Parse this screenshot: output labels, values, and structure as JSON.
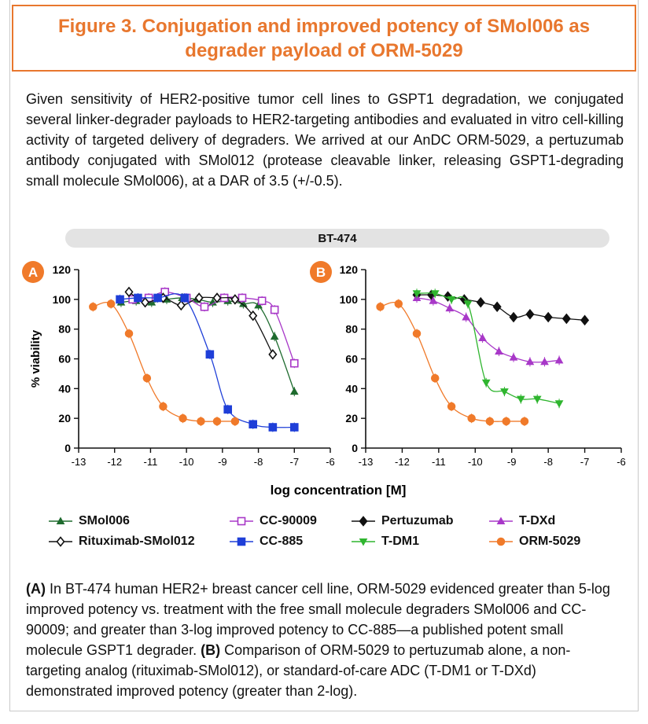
{
  "figure": {
    "title": "Figure 3. Conjugation and improved potency of SMol006 as degrader payload of ORM-5029",
    "intro": "Given sensitivity of HER2-positive tumor cell lines to GSPT1 degradation, we conjugated several linker-degrader payloads to HER2-targeting antibodies and evaluated in vitro cell-killing activity of targeted delivery of degraders. We arrived at our AnDC ORM-5029, a pertuzumab antibody conjugated with SMol012 (protease cleavable linker, releasing GSPT1-degrading small molecule SMol006), at a DAR of 3.5 (+/-0.5).",
    "cell_line": "BT-474",
    "caption": {
      "a_label": "(A)",
      "a_text": " In BT-474 human HER2+ breast cancer cell line, ORM-5029 evidenced greater than 5-log improved potency vs. treatment with the free small molecule degraders SMol006 and CC-90009; and greater than 3-log improved potency to CC-885—a published potent small molecule GSPT1 degrader. ",
      "b_label": "(B)",
      "b_text": " Comparison of ORM-5029 to pertuzumab alone, a non-targeting analog (rituximab-SMol012), or standard-of-care ADC (T-DM1 or T-DXd) demonstrated improved potency (greater than 2-log)."
    }
  },
  "legend": [
    {
      "name": "SMol006",
      "color": "#1e6b2e",
      "marker": "triangle"
    },
    {
      "name": "CC-90009",
      "color": "#a838c8",
      "marker": "square-open"
    },
    {
      "name": "Pertuzumab",
      "color": "#111111",
      "marker": "diamond"
    },
    {
      "name": "T-DXd",
      "color": "#a838c8",
      "marker": "triangle"
    },
    {
      "name": "Rituximab-SMol012",
      "color": "#111111",
      "marker": "diamond-open"
    },
    {
      "name": "CC-885",
      "color": "#1f3fd8",
      "marker": "square"
    },
    {
      "name": "T-DM1",
      "color": "#2fb52f",
      "marker": "triangle-down"
    },
    {
      "name": "ORM-5029",
      "color": "#f07a2a",
      "marker": "circle"
    }
  ],
  "chart_data": [
    {
      "type": "scatter",
      "panel": "A",
      "xlabel": "log concentration [M]",
      "ylabel": "% viability",
      "xlim": [
        -13,
        -6
      ],
      "ylim": [
        0,
        120
      ],
      "xticks": [
        -13,
        -12,
        -11,
        -10,
        -9,
        -8,
        -7,
        -6
      ],
      "yticks": [
        0,
        20,
        40,
        60,
        80,
        100,
        120
      ],
      "series": [
        {
          "name": "SMol006",
          "color": "#1e6b2e",
          "marker": "triangle",
          "x": [
            -11.82,
            -11.4,
            -10.97,
            -10.55,
            -10.12,
            -9.7,
            -9.27,
            -8.85,
            -8.42,
            -8.0,
            -7.55,
            -7.0
          ],
          "y": [
            98,
            99,
            98,
            100,
            101,
            100,
            98,
            99,
            97,
            96,
            75,
            38
          ]
        },
        {
          "name": "CC-90009",
          "color": "#a838c8",
          "marker": "square-open",
          "x": [
            -11.5,
            -11.05,
            -10.6,
            -10.0,
            -9.5,
            -8.95,
            -8.45,
            -7.9,
            -7.55,
            -7.0
          ],
          "y": [
            100,
            101,
            105,
            101,
            95,
            101,
            101,
            99,
            93,
            57
          ]
        },
        {
          "name": "Rituximab-SMol012",
          "color": "#111111",
          "marker": "diamond-open",
          "x": [
            -11.6,
            -11.15,
            -10.65,
            -10.15,
            -9.65,
            -9.15,
            -8.65,
            -8.15,
            -7.6
          ],
          "y": [
            105,
            98,
            101,
            96,
            101,
            101,
            100,
            89,
            63
          ]
        },
        {
          "name": "CC-885",
          "color": "#1f3fd8",
          "marker": "square",
          "x": [
            -11.85,
            -11.35,
            -10.8,
            -10.05,
            -9.35,
            -8.85,
            -8.15,
            -7.6,
            -7.0
          ],
          "y": [
            100,
            101,
            101,
            101,
            63,
            26,
            16,
            14,
            14
          ]
        },
        {
          "name": "ORM-5029",
          "color": "#f07a2a",
          "marker": "circle",
          "x": [
            -12.6,
            -12.1,
            -11.6,
            -11.1,
            -10.65,
            -10.1,
            -9.6,
            -9.15,
            -8.65
          ],
          "y": [
            95,
            97,
            77,
            47,
            28,
            20,
            18,
            18,
            18
          ]
        }
      ]
    },
    {
      "type": "scatter",
      "panel": "B",
      "xlabel": "log concentration [M]",
      "ylabel": "",
      "xlim": [
        -13,
        -6
      ],
      "ylim": [
        0,
        120
      ],
      "xticks": [
        -13,
        -12,
        -11,
        -10,
        -9,
        -8,
        -7,
        -6
      ],
      "yticks": [
        0,
        20,
        40,
        60,
        80,
        100,
        120
      ],
      "series": [
        {
          "name": "Pertuzumab",
          "color": "#111111",
          "marker": "diamond",
          "x": [
            -11.6,
            -11.2,
            -10.75,
            -10.3,
            -9.85,
            -9.4,
            -8.95,
            -8.5,
            -8.0,
            -7.5,
            -7.0
          ],
          "y": [
            103,
            103,
            102,
            100,
            98,
            95,
            88,
            90,
            88,
            87,
            86
          ]
        },
        {
          "name": "T-DXd",
          "color": "#a838c8",
          "marker": "triangle",
          "x": [
            -11.6,
            -11.15,
            -10.7,
            -10.25,
            -9.8,
            -9.35,
            -8.95,
            -8.5,
            -8.1,
            -7.7
          ],
          "y": [
            101,
            99,
            94,
            88,
            74,
            65,
            61,
            58,
            58,
            59
          ]
        },
        {
          "name": "T-DM1",
          "color": "#2fb52f",
          "marker": "triangle-down",
          "x": [
            -11.6,
            -11.1,
            -10.65,
            -10.2,
            -9.7,
            -9.2,
            -8.75,
            -8.3,
            -7.7
          ],
          "y": [
            104,
            104,
            100,
            97,
            44,
            38,
            33,
            33,
            30
          ]
        },
        {
          "name": "ORM-5029",
          "color": "#f07a2a",
          "marker": "circle",
          "x": [
            -12.6,
            -12.1,
            -11.6,
            -11.1,
            -10.65,
            -10.1,
            -9.6,
            -9.15,
            -8.65
          ],
          "y": [
            95,
            97,
            77,
            47,
            28,
            20,
            18,
            18,
            18
          ]
        }
      ]
    }
  ]
}
